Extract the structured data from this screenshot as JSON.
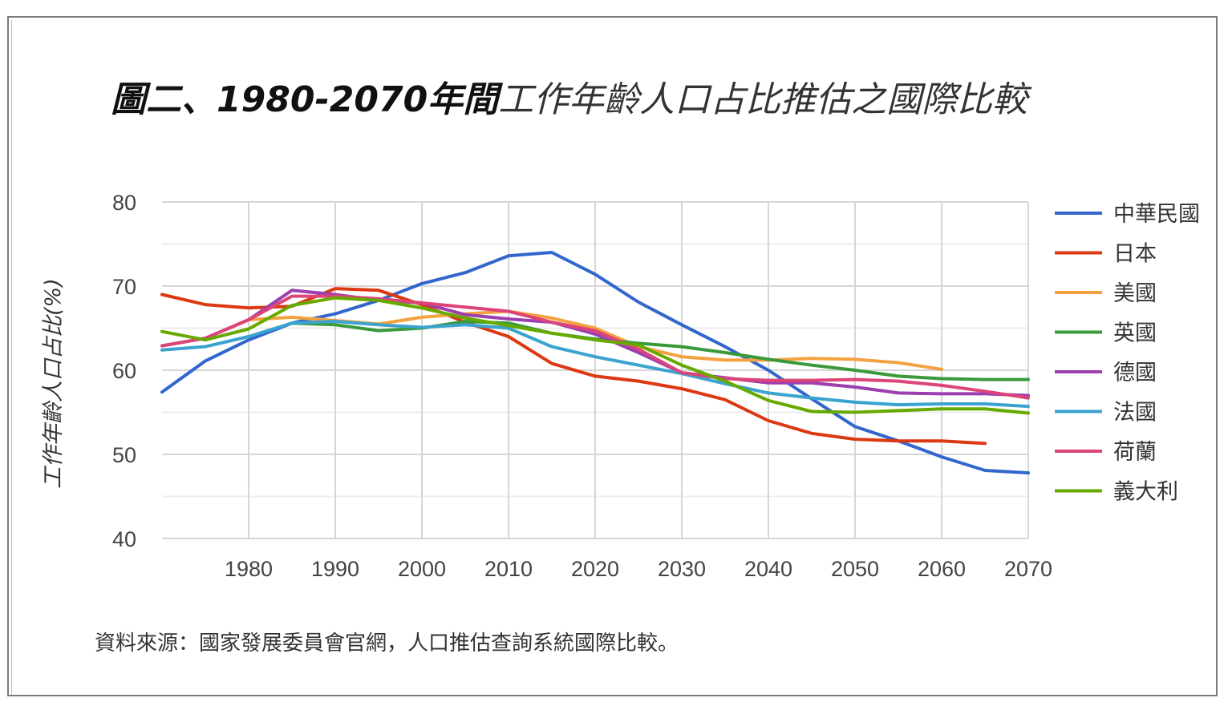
{
  "figure": {
    "title_bold": "圖二、1980-2070年間",
    "title_rest": "工作年齡人口占比推估之國際比較",
    "source_note": "資料來源：國家發展委員會官網，人口推估查詢系統國際比較。"
  },
  "chart_data": {
    "type": "line",
    "title": "圖二、1980-2070年間工作年齡人口占比推估之國際比較",
    "xlabel": "",
    "ylabel": "工作年齡人口占比(%)",
    "xlim": [
      1970,
      2070
    ],
    "ylim": [
      40,
      80
    ],
    "x_ticks": [
      1980,
      1990,
      2000,
      2010,
      2020,
      2030,
      2040,
      2050,
      2060,
      2070
    ],
    "y_ticks": [
      40,
      50,
      60,
      70,
      80
    ],
    "y_minor_ticks": [
      45,
      55,
      65,
      75
    ],
    "grid": true,
    "legend_position": "right",
    "x": [
      1970,
      1975,
      1980,
      1985,
      1990,
      1995,
      2000,
      2005,
      2010,
      2015,
      2020,
      2025,
      2030,
      2035,
      2040,
      2045,
      2050,
      2055,
      2060,
      2065,
      2070
    ],
    "series": [
      {
        "name": "中華民國",
        "color": "#3366cc",
        "values": [
          57.4,
          61.1,
          63.6,
          65.6,
          66.7,
          68.3,
          70.3,
          71.6,
          73.6,
          74.0,
          71.4,
          68.1,
          65.4,
          62.8,
          60.0,
          56.6,
          53.3,
          51.6,
          49.7,
          48.1,
          47.8
        ]
      },
      {
        "name": "日本",
        "color": "#dc3912",
        "values": [
          69.0,
          67.8,
          67.4,
          67.6,
          69.7,
          69.5,
          67.8,
          65.7,
          64.0,
          60.8,
          59.3,
          58.7,
          57.8,
          56.5,
          54.0,
          52.5,
          51.8,
          51.6,
          51.6,
          51.3,
          null
        ]
      },
      {
        "name": "美國",
        "color": "#f4a240",
        "values": [
          null,
          null,
          66.0,
          66.3,
          65.9,
          65.5,
          66.3,
          66.7,
          67.0,
          66.2,
          65.0,
          62.8,
          61.6,
          61.2,
          61.2,
          61.4,
          61.3,
          60.9,
          60.1,
          null,
          null
        ]
      },
      {
        "name": "英國",
        "color": "#3a9a3a",
        "values": [
          null,
          null,
          null,
          65.6,
          65.4,
          64.7,
          65.0,
          65.8,
          65.6,
          64.4,
          63.7,
          63.2,
          62.8,
          62.1,
          61.3,
          60.6,
          60.0,
          59.3,
          59.0,
          58.9,
          58.9
        ]
      },
      {
        "name": "德國",
        "color": "#9c3fb0",
        "values": [
          62.9,
          63.8,
          66.0,
          69.5,
          69.0,
          68.3,
          68.0,
          66.6,
          66.1,
          65.7,
          64.3,
          62.1,
          59.7,
          59.1,
          58.5,
          58.5,
          58.0,
          57.3,
          57.2,
          57.2,
          57.0
        ]
      },
      {
        "name": "法國",
        "color": "#3ba3cf",
        "values": [
          62.4,
          62.8,
          64.0,
          65.6,
          65.8,
          65.4,
          65.1,
          65.4,
          65.0,
          62.8,
          61.6,
          60.6,
          59.6,
          58.4,
          57.3,
          56.7,
          56.2,
          55.9,
          56.0,
          56.0,
          55.7
        ]
      },
      {
        "name": "荷蘭",
        "color": "#dd4477",
        "values": [
          62.9,
          63.8,
          66.0,
          68.8,
          68.8,
          68.5,
          68.0,
          67.5,
          67.0,
          65.7,
          64.7,
          62.5,
          59.7,
          59.0,
          58.8,
          58.8,
          58.9,
          58.7,
          58.2,
          57.5,
          56.7
        ]
      },
      {
        "name": "義大利",
        "color": "#66aa00",
        "values": [
          64.6,
          63.6,
          64.9,
          67.7,
          68.6,
          68.3,
          67.4,
          66.2,
          65.3,
          64.4,
          63.6,
          63.0,
          60.6,
          58.7,
          56.4,
          55.1,
          55.0,
          55.2,
          55.4,
          55.4,
          54.9
        ]
      }
    ]
  }
}
